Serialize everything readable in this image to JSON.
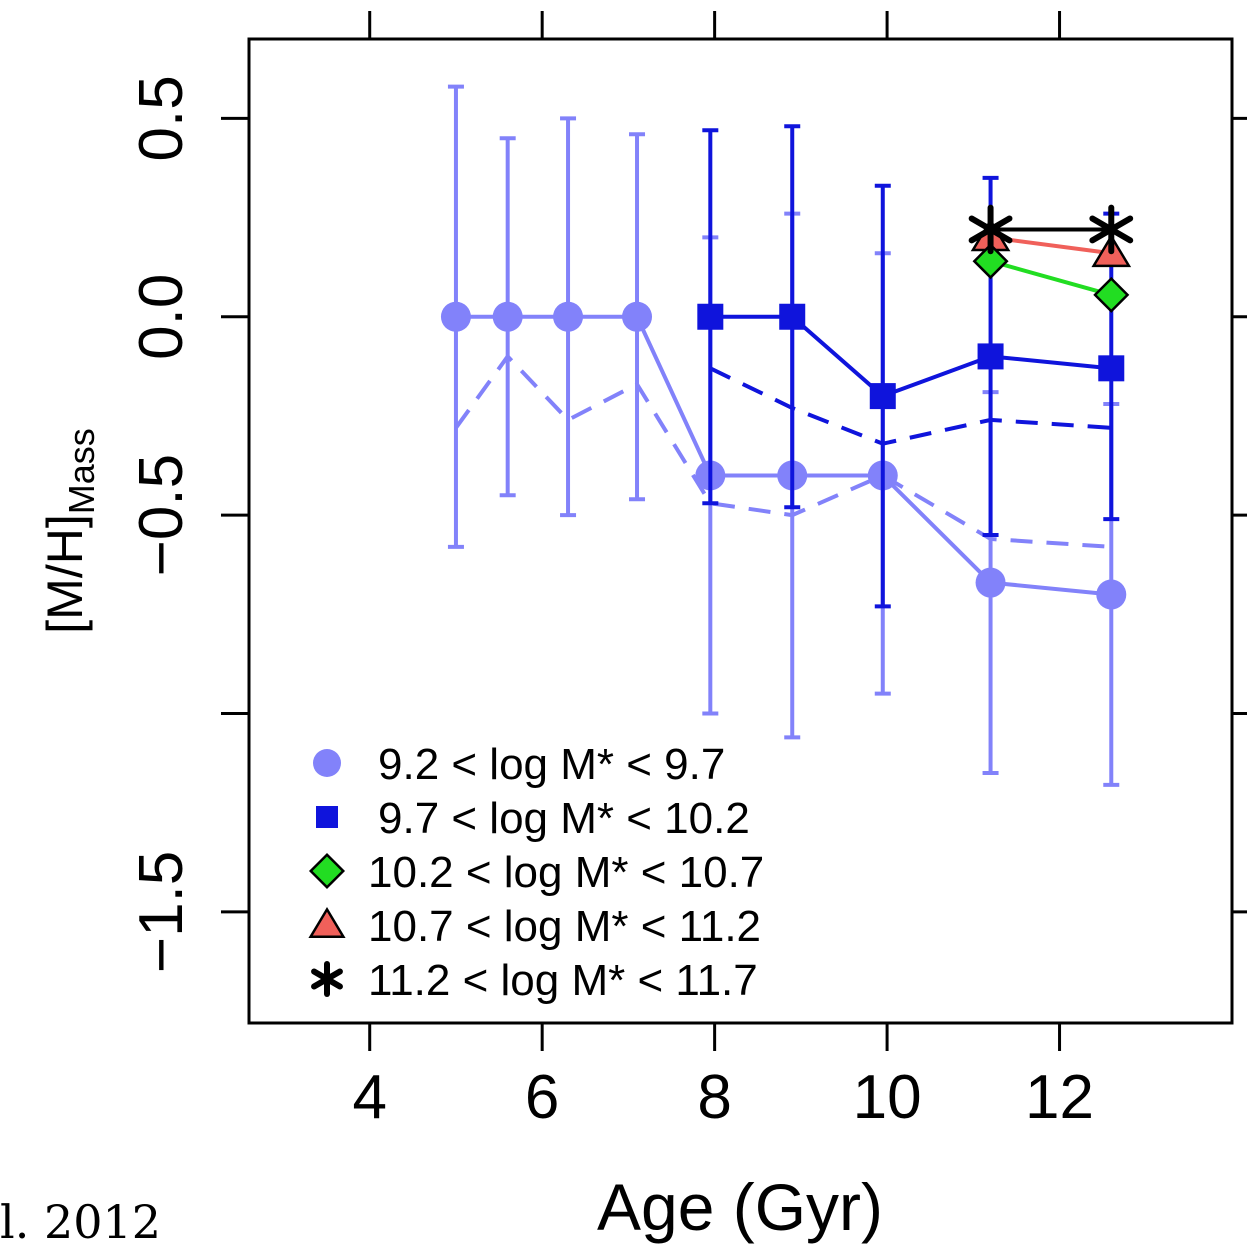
{
  "corner_text": "l. 2012",
  "colors": {
    "light_blue": "#8282fa",
    "blue": "#0f14dc",
    "green": "#22dd22",
    "red": "#f0605a",
    "black": "#000000"
  },
  "chart_data": {
    "type": "line",
    "title": "",
    "xlabel": "Age (Gyr)",
    "ylabel": "[M/H]",
    "ylabel_sub": "Mass",
    "xlim": [
      2.6,
      14.0
    ],
    "ylim": [
      -1.78,
      0.7
    ],
    "xticks": [
      4,
      6,
      8,
      10,
      12
    ],
    "xtick_labels": [
      "4",
      "6",
      "8",
      "10",
      "12"
    ],
    "yticks": [
      0.5,
      0.0,
      -0.5,
      -1.0,
      -1.5
    ],
    "ytick_labels": [
      "0.5",
      "0.0",
      "−0.5",
      "",
      "−1.5"
    ],
    "grid": false,
    "legend_position": "bottom-left",
    "series": [
      {
        "name": "9.2 < log M* <  9.7",
        "color_key": "light_blue",
        "marker": "circle",
        "x": [
          5.0,
          5.6,
          6.3,
          7.1,
          7.95,
          8.9,
          9.95,
          11.2,
          12.6
        ],
        "y": [
          0.0,
          0.0,
          0.0,
          0.0,
          -0.4,
          -0.4,
          -0.4,
          -0.67,
          -0.7
        ],
        "err_low": [
          -0.58,
          -0.45,
          -0.5,
          -0.46,
          -1.0,
          -1.06,
          -0.95,
          -1.15,
          -1.18
        ],
        "err_high": [
          0.58,
          0.45,
          0.5,
          0.46,
          0.2,
          0.26,
          0.16,
          -0.19,
          -0.22
        ],
        "dashed_x": [
          5.0,
          5.6,
          6.3,
          7.1,
          7.95,
          8.9,
          9.95,
          11.2,
          12.6
        ],
        "dashed_y": [
          -0.28,
          -0.1,
          -0.26,
          -0.17,
          -0.47,
          -0.5,
          -0.4,
          -0.56,
          -0.58
        ]
      },
      {
        "name": "9.7 < log M* < 10.2",
        "color_key": "blue",
        "marker": "square",
        "x": [
          7.95,
          8.9,
          9.95,
          11.2,
          12.6
        ],
        "y": [
          0.0,
          0.0,
          -0.2,
          -0.1,
          -0.13
        ],
        "err_low": [
          -0.47,
          -0.48,
          -0.73,
          -0.55,
          -0.51
        ],
        "err_high": [
          0.47,
          0.48,
          0.33,
          0.35,
          0.26
        ],
        "dashed_x": [
          7.95,
          8.9,
          9.95,
          11.2,
          12.6
        ],
        "dashed_y": [
          -0.13,
          -0.23,
          -0.32,
          -0.26,
          -0.28
        ]
      },
      {
        "name": "10.2 < log M* < 10.7",
        "color_key": "green",
        "marker": "diamond",
        "x": [
          11.2,
          12.6
        ],
        "y": [
          0.14,
          0.055
        ]
      },
      {
        "name": "10.7 < log M* < 11.2",
        "color_key": "red",
        "marker": "triangle",
        "x": [
          11.2,
          12.6
        ],
        "y": [
          0.2,
          0.16
        ]
      },
      {
        "name": "11.2 < log M* < 11.7",
        "color_key": "black",
        "marker": "star",
        "x": [
          11.2,
          12.6
        ],
        "y": [
          0.22,
          0.22
        ]
      }
    ]
  }
}
